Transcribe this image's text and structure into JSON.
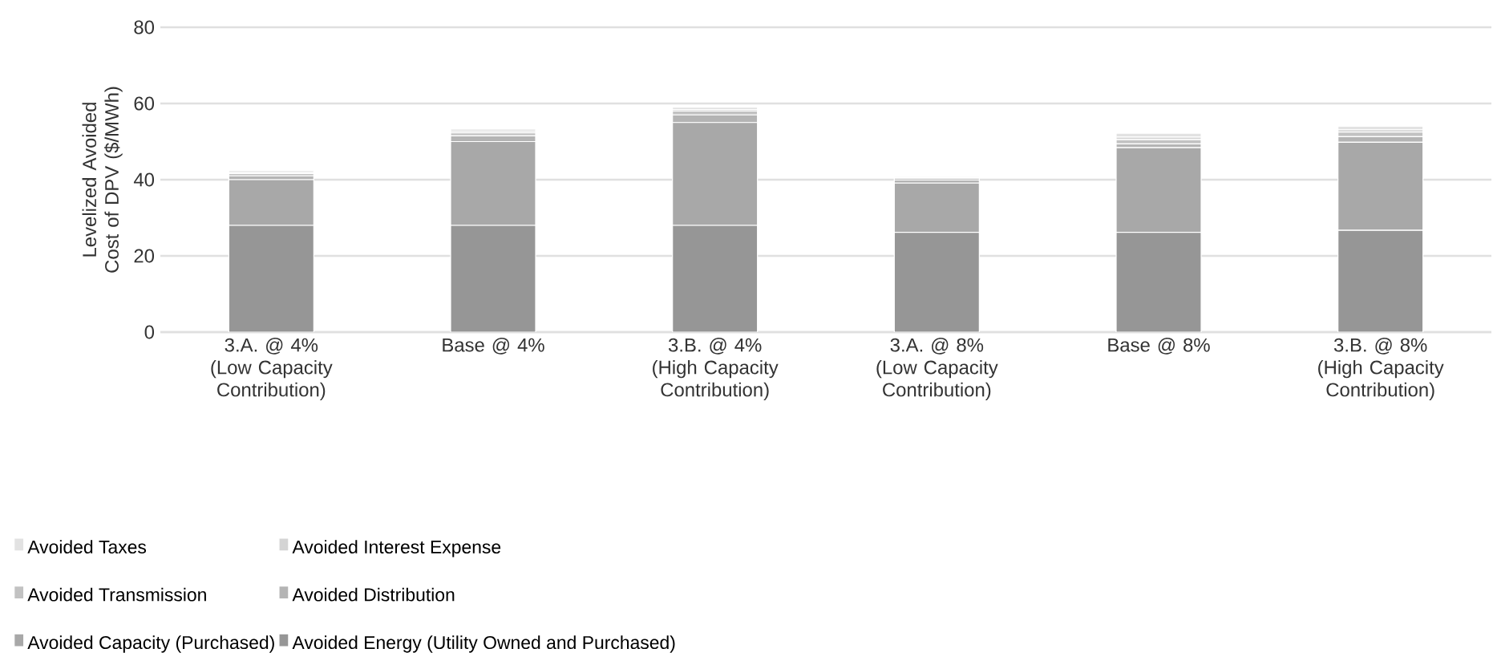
{
  "chart_data": {
    "type": "bar",
    "stacked": true,
    "ylabel": "Levelized Avoided Cost of DPV ($/MWh)",
    "categories": [
      "3.A. @ 4% (Low Capacity Contribution)",
      "Base @ 4%",
      "3.B. @ 4% (High Capacity Contribution)",
      "3.A. @ 8% (Low Capacity Contribution)",
      "Base @ 8%",
      "3.B. @ 8% (High Capacity Contribution)"
    ],
    "series": [
      {
        "name": "Avoided Energy (Utility Owned and Purchased)",
        "color": "#969696",
        "values": [
          28,
          28,
          28,
          26.2,
          26.2,
          26.7
        ]
      },
      {
        "name": "Avoided Capacity (Purchased)",
        "color": "#a8a8a8",
        "values": [
          12,
          22,
          27,
          12.9,
          22.2,
          23.1
        ]
      },
      {
        "name": "Avoided Distribution",
        "color": "#b4b4b4",
        "values": [
          1,
          1.5,
          2,
          0.8,
          1,
          1.5
        ]
      },
      {
        "name": "Avoided Transmission",
        "color": "#c2c2c2",
        "values": [
          0.6,
          0.8,
          1,
          0.5,
          1.1,
          1.2
        ]
      },
      {
        "name": "Avoided Interest Expense",
        "color": "#d4d4d4",
        "values": [
          0.3,
          0.4,
          0.4,
          0.2,
          0.7,
          0.6
        ]
      },
      {
        "name": "Avoided Taxes",
        "color": "#e2e2e2",
        "values": [
          0.5,
          0.6,
          0.6,
          0.3,
          1,
          0.9
        ]
      }
    ],
    "ylim": [
      0,
      80
    ],
    "yticks": [
      0,
      20,
      40,
      60,
      80
    ],
    "grid": "y",
    "legend": "bottom"
  }
}
